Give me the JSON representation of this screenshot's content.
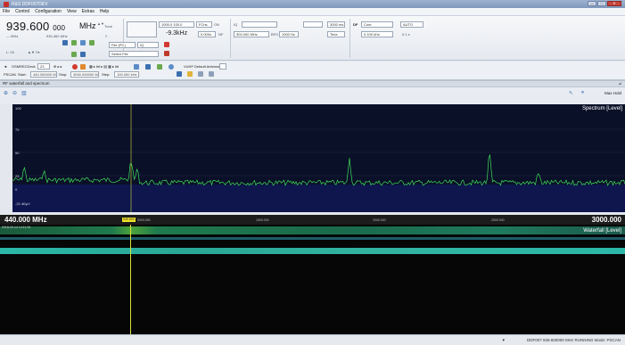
{
  "window": {
    "title": "R&S DDF007DEV",
    "controls": {
      "minimize": "—",
      "maximize": "□",
      "close": "✕"
    }
  },
  "menu": {
    "items": [
      "File",
      "Control",
      "Configuration",
      "View",
      "Extras",
      "Help"
    ]
  },
  "frequency": {
    "main": "939.600",
    "sub": "000",
    "unit": "MHz",
    "step_label": "--- MHz",
    "step_value": "930.460 MHz",
    "tune_label": "Tune",
    "level": "----- dBµV",
    "offset": "-9.3kHz",
    "range_box": "1000.0   100.0",
    "mode_box": "FCns",
    "on_label": "ON",
    "sub_value": "0.000s",
    "nf_label": "NF",
    "bandwidth": "300.000 MHz",
    "bfo_label": "BFO",
    "bfo_value": "1000 Hz",
    "iq_label": "IQ",
    "time_value": "3000 ms",
    "time_mode": "Time",
    "df_label": "DF",
    "df_mode": "Cont",
    "df_auto": "AUTO",
    "df_value": "0.100 kHz",
    "df_time": "0.1 s",
    "l_label": "L: 03",
    "file_mode": "File (PC)",
    "file_box": "IQ",
    "select_file": "Select File"
  },
  "toolbar2": {
    "mode": "GSMRECDeck",
    "count": "23",
    "antenna": "VUHF Default Antenna",
    "pscan": "PSCAN",
    "start_label": "Start:",
    "start_value": "440.000000 MHz",
    "stop_label": "Stop:",
    "stop_value": "3000.000000 MHz",
    "step_label": "Step:",
    "step_value": "100.000 kHz"
  },
  "panel": {
    "header": "RF waterfall and spectrum",
    "max_hold": "Max Hold"
  },
  "spectrum": {
    "label": "Spectrum [Level]",
    "y_ticks": [
      "100",
      "75",
      "50",
      "25",
      "0",
      "-22 dBµV"
    ]
  },
  "scale": {
    "start": "440.000 MHz",
    "end": "3000.000",
    "marker": "939.600",
    "ticks": [
      "0000.000",
      "1500.000",
      "2000.000",
      "2500.000"
    ]
  },
  "waterfall": {
    "label": "Waterfall [Level]",
    "timestamp": "2018-03-14 14:11:34"
  },
  "status": {
    "text": "DDF007 939.600000 MHz  RUNNING  Mode: PSCAN"
  },
  "colors": {
    "spectrum_trace": "#3fdc5a",
    "marker": "#d9e23a",
    "waterfall_band": "#2bb8a8"
  }
}
